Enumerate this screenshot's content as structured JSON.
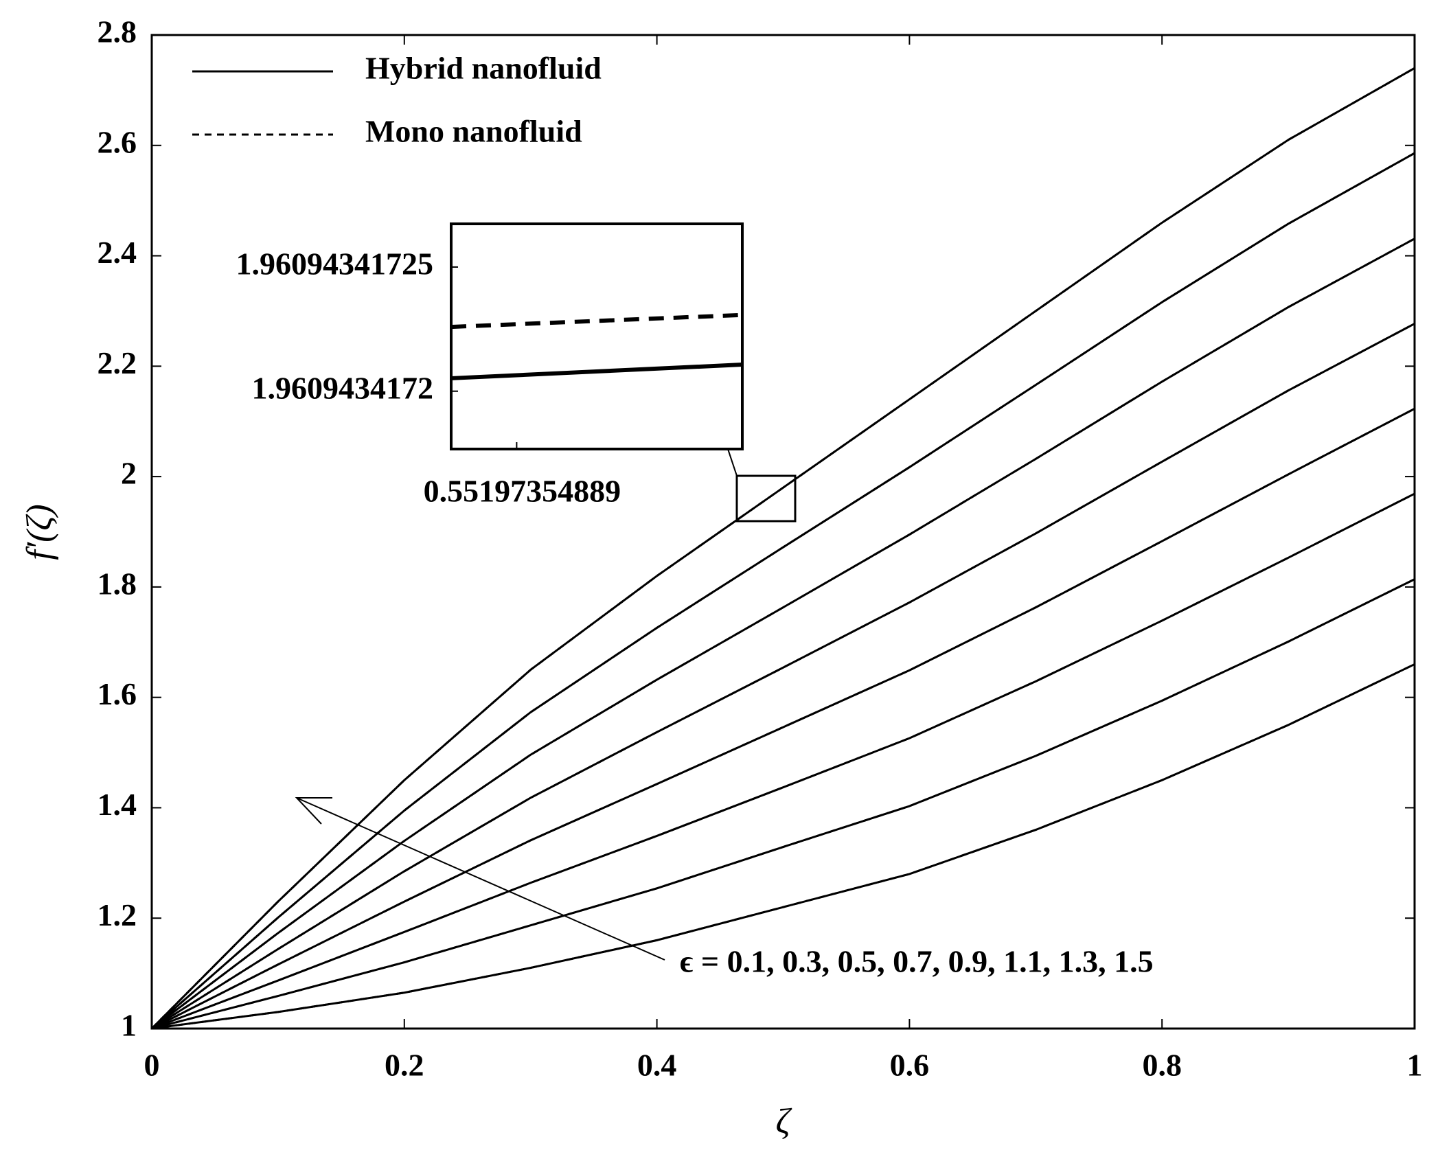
{
  "chart_data": {
    "type": "line",
    "x_label": "ζ",
    "y_label": "f′(ζ)",
    "x": [
      0,
      0.1,
      0.2,
      0.3,
      0.4,
      0.5,
      0.6,
      0.7,
      0.8,
      0.9,
      1
    ],
    "xlim": [
      0,
      1
    ],
    "ylim": [
      1,
      2.8
    ],
    "xticks": [
      0,
      0.2,
      0.4,
      0.6,
      0.8,
      1
    ],
    "yticks": [
      1,
      1.2,
      1.4,
      1.6,
      1.8,
      2,
      2.2,
      2.4,
      2.6,
      2.8
    ],
    "series": [
      {
        "name": "Hybrid nanofluid",
        "color": "#000000",
        "dash": false,
        "curves": [
          [
            1,
            1.03,
            1.065,
            1.11,
            1.16,
            1.22,
            1.28,
            1.36,
            1.45,
            1.55,
            1.66
          ],
          [
            1,
            1.059,
            1.12,
            1.187,
            1.254,
            1.329,
            1.403,
            1.494,
            1.594,
            1.701,
            1.814
          ],
          [
            1,
            1.087,
            1.175,
            1.264,
            1.349,
            1.437,
            1.526,
            1.629,
            1.739,
            1.853,
            1.969
          ],
          [
            1,
            1.116,
            1.23,
            1.341,
            1.443,
            1.546,
            1.649,
            1.763,
            1.883,
            2.004,
            2.123
          ],
          [
            1,
            1.144,
            1.285,
            1.418,
            1.537,
            1.654,
            1.772,
            1.897,
            2.027,
            2.156,
            2.277
          ],
          [
            1,
            1.173,
            1.34,
            1.496,
            1.632,
            1.763,
            1.895,
            2.032,
            2.172,
            2.307,
            2.431
          ],
          [
            1,
            1.201,
            1.395,
            1.573,
            1.726,
            1.872,
            2.017,
            2.166,
            2.316,
            2.458,
            2.586
          ],
          [
            1,
            1.23,
            1.45,
            1.65,
            1.82,
            1.98,
            2.14,
            2.3,
            2.46,
            2.61,
            2.74
          ]
        ]
      },
      {
        "name": "Mono nanofluid",
        "color": "#000000",
        "dash": true,
        "curves": [
          [
            1,
            1.03,
            1.065,
            1.11,
            1.16,
            1.22,
            1.28,
            1.36,
            1.45,
            1.55,
            1.66
          ],
          [
            1,
            1.059,
            1.12,
            1.187,
            1.254,
            1.329,
            1.403,
            1.494,
            1.594,
            1.701,
            1.814
          ],
          [
            1,
            1.087,
            1.175,
            1.264,
            1.349,
            1.437,
            1.526,
            1.629,
            1.739,
            1.853,
            1.969
          ],
          [
            1,
            1.116,
            1.23,
            1.341,
            1.443,
            1.546,
            1.649,
            1.763,
            1.883,
            2.004,
            2.123
          ],
          [
            1,
            1.144,
            1.285,
            1.418,
            1.537,
            1.654,
            1.772,
            1.897,
            2.027,
            2.156,
            2.277
          ],
          [
            1,
            1.173,
            1.34,
            1.496,
            1.632,
            1.763,
            1.895,
            2.032,
            2.172,
            2.307,
            2.431
          ],
          [
            1,
            1.201,
            1.395,
            1.573,
            1.726,
            1.872,
            2.017,
            2.166,
            2.316,
            2.458,
            2.586
          ],
          [
            1,
            1.23,
            1.45,
            1.65,
            1.82,
            1.98,
            2.14,
            2.3,
            2.46,
            2.61,
            2.74
          ]
        ]
      }
    ],
    "annotation": "ϵ = 0.1, 0.3, 0.5, 0.7, 0.9, 1.1, 1.3, 1.5",
    "inset": {
      "xlim": [
        0.5519735488,
        0.5519735492
      ],
      "ylim": [
        1.9609434171767,
        1.9609434172674
      ],
      "xticks": [
        0.55197354889
      ],
      "yticks": [
        1.96094341725,
        1.9609434172
      ],
      "x": [
        0.5519735488,
        0.5519735492
      ],
      "series": [
        {
          "dash": false,
          "values": [
            1.9609434172052,
            1.9609434172107
          ]
        },
        {
          "dash": true,
          "values": [
            1.9609434172259,
            1.9609434172307
          ]
        }
      ]
    }
  }
}
